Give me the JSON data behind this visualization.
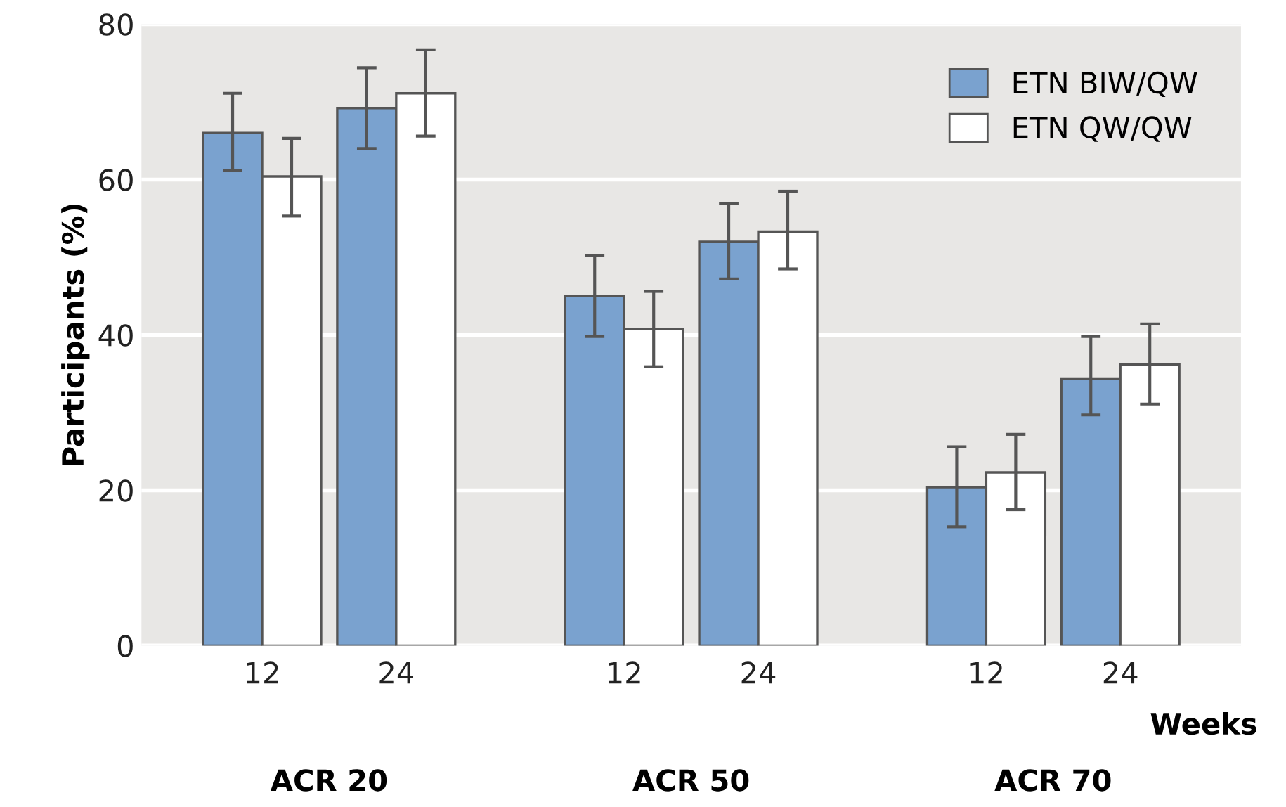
{
  "chart_data": {
    "type": "bar",
    "ylabel": "Participants (%)",
    "xlabel": "Weeks",
    "categories": [
      "12",
      "24",
      "12",
      "24",
      "12",
      "24"
    ],
    "series": [
      {
        "name": "ETN BIW/QW",
        "color": "#7aa2cf",
        "values": [
          66,
          69.2,
          45,
          52,
          20.4,
          34.3
        ],
        "errors": [
          [
            61.2,
            71.1
          ],
          [
            64,
            74.4
          ],
          [
            39.8,
            50.2
          ],
          [
            47.2,
            56.9
          ],
          [
            15.3,
            25.6
          ],
          [
            29.7,
            39.8
          ]
        ]
      },
      {
        "name": "ETN QW/QW",
        "color": "#ffffff",
        "values": [
          60.4,
          71.1,
          40.8,
          53.3,
          22.3,
          36.2
        ],
        "errors": [
          [
            55.3,
            65.3
          ],
          [
            65.6,
            76.7
          ],
          [
            35.9,
            45.6
          ],
          [
            48.5,
            58.5
          ],
          [
            17.5,
            27.2
          ],
          [
            31.1,
            41.4
          ]
        ]
      }
    ],
    "annotations": [
      "ACR 20",
      "ACR 50",
      "ACR 70"
    ],
    "ylim": [
      0,
      80
    ],
    "yticks": [
      0,
      20,
      40,
      60,
      80
    ],
    "grid": "y",
    "legend": "top right"
  }
}
